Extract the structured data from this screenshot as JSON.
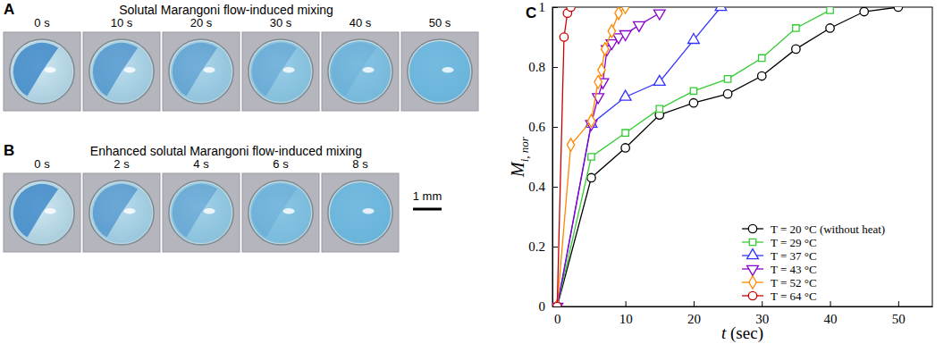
{
  "panel_a": {
    "letter": "A",
    "title": "Solutal Marangoni flow-induced mixing",
    "frames": [
      "0 s",
      "10 s",
      "20 s",
      "30 s",
      "40 s",
      "50 s"
    ]
  },
  "panel_b": {
    "letter": "B",
    "title": "Enhanced solutal Marangoni flow-induced mixing",
    "frames": [
      "0 s",
      "2 s",
      "4 s",
      "6 s",
      "8 s"
    ]
  },
  "scale_bar": {
    "label": "1 mm"
  },
  "chart_data": {
    "type": "line",
    "panel_label": "C",
    "x_label": "t (sec)",
    "y_label": {
      "main": "M",
      "sub": "i, nor"
    },
    "xlim": [
      -0.7,
      55
    ],
    "xticks": [
      0,
      10,
      20,
      30,
      40,
      50
    ],
    "ylim": [
      0,
      1
    ],
    "yticks": [
      0,
      0.2,
      0.4,
      0.6,
      0.8,
      1
    ],
    "grid": false,
    "legend": "lower right",
    "series": [
      {
        "name": "T = 20 °C (without heat)",
        "color": "#000000",
        "marker": "circle",
        "x": [
          0,
          5,
          10,
          15,
          20,
          25,
          30,
          35,
          40,
          45,
          50
        ],
        "values": [
          0,
          0.43,
          0.53,
          0.64,
          0.68,
          0.71,
          0.77,
          0.86,
          0.93,
          0.985,
          1.0
        ]
      },
      {
        "name": "T = 29 °C",
        "color": "#33cc33",
        "marker": "square",
        "x": [
          0,
          5,
          10,
          15,
          20,
          25,
          30,
          35,
          40
        ],
        "values": [
          0,
          0.5,
          0.58,
          0.66,
          0.72,
          0.76,
          0.83,
          0.93,
          0.99
        ]
      },
      {
        "name": "T = 37 °C",
        "color": "#3333ff",
        "marker": "triangle-up",
        "x": [
          0,
          5,
          10,
          15,
          20,
          24
        ],
        "values": [
          0,
          0.61,
          0.7,
          0.75,
          0.89,
          1.0
        ]
      },
      {
        "name": "T = 43 °C",
        "color": "#8800cc",
        "marker": "triangle-down",
        "x": [
          0,
          5,
          6,
          6.7,
          7.3,
          8,
          9,
          10,
          12,
          15
        ],
        "values": [
          0,
          0.61,
          0.7,
          0.75,
          0.86,
          0.88,
          0.9,
          0.91,
          0.94,
          0.98
        ]
      },
      {
        "name": "T = 52 °C",
        "color": "#ff8800",
        "marker": "diamond",
        "x": [
          0,
          2,
          5,
          6,
          6.5,
          7,
          8,
          9,
          10
        ],
        "values": [
          0,
          0.54,
          0.62,
          0.75,
          0.79,
          0.86,
          0.92,
          0.98,
          1.0
        ]
      },
      {
        "name": "T = 64 °C",
        "color": "#cc0000",
        "marker": "circle",
        "x": [
          0,
          1,
          1.5,
          2
        ],
        "values": [
          0,
          0.9,
          0.98,
          1.0
        ]
      }
    ]
  }
}
